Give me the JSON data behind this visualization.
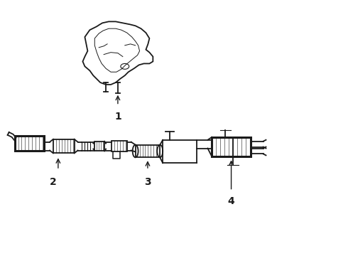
{
  "background_color": "#ffffff",
  "line_color": "#1a1a1a",
  "label_color": "#1a1a1a",
  "fig_width": 4.9,
  "fig_height": 3.6,
  "dpi": 100,
  "label_fontsize": 10,
  "lw_main": 1.3,
  "lw_thick": 2.2
}
